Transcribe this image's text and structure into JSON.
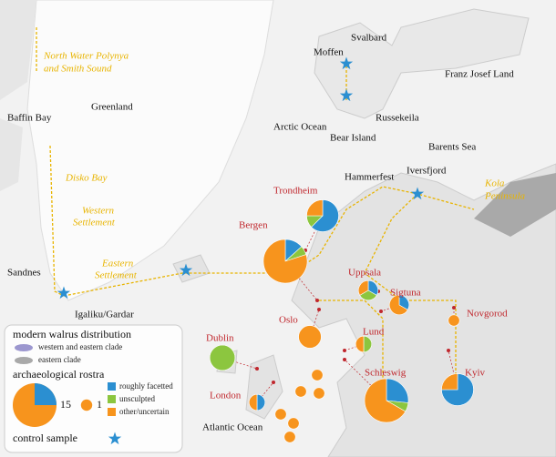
{
  "map": {
    "sea_labels": [
      "Baffin Bay",
      "Arctic Ocean",
      "Barents Sea",
      "Atlantic Ocean"
    ],
    "land_labels": [
      "Greenland",
      "Svalbard",
      "Franz Josef Land",
      "Bear Island",
      "Moffen",
      "Russekeila",
      "Hammerfest",
      "Iversfjord",
      "Sandnes",
      "Igaliku/Gardar"
    ],
    "hunting_grounds": [
      "North Water Polynya",
      "and Smith Sound",
      "Disko Bay",
      "Western",
      "Settlement",
      "Eastern",
      "Settlement",
      "Kola",
      "Peninsula"
    ],
    "sites": [
      {
        "label": "Trondheim",
        "values": [
          5,
          1,
          2
        ]
      },
      {
        "label": "Bergen",
        "values": [
          2,
          1,
          12
        ]
      },
      {
        "label": "Uppsala",
        "values": [
          1,
          1,
          1
        ]
      },
      {
        "label": "Sigtuna",
        "values": [
          1,
          0,
          2
        ]
      },
      {
        "label": "Oslo",
        "values": [
          0,
          0,
          4
        ]
      },
      {
        "label": "Novgorod",
        "values": [
          0,
          0,
          1
        ]
      },
      {
        "label": "Dublin",
        "values": [
          0,
          5,
          0
        ]
      },
      {
        "label": "Lund",
        "values": [
          0,
          1,
          1
        ]
      },
      {
        "label": "Schleswig",
        "values": [
          4,
          1,
          10
        ]
      },
      {
        "label": "Kyiv",
        "values": [
          6,
          0,
          2
        ]
      },
      {
        "label": "London",
        "values": [
          1,
          0,
          1
        ]
      },
      {
        "label": null,
        "values": [
          0,
          0,
          1
        ]
      },
      {
        "label": null,
        "values": [
          0,
          0,
          1
        ]
      },
      {
        "label": null,
        "values": [
          0,
          0,
          1
        ]
      },
      {
        "label": null,
        "values": [
          0,
          0,
          1
        ]
      },
      {
        "label": null,
        "values": [
          0,
          0,
          1
        ]
      },
      {
        "label": null,
        "values": [
          0,
          0,
          1
        ]
      }
    ]
  },
  "legend": {
    "distribution_title": "modern walrus distribution",
    "distribution": [
      {
        "label": "western and eastern clade",
        "color": "#9c97cf"
      },
      {
        "label": "eastern clade",
        "color": "#a9a9a9"
      }
    ],
    "rostra_title": "archaeological rostra",
    "size_examples": [
      {
        "value": 15,
        "label": "15"
      },
      {
        "value": 1,
        "label": "1"
      }
    ],
    "categories": [
      {
        "label": "roughly facetted",
        "color": "#2b8fd1"
      },
      {
        "label": "unsculpted",
        "color": "#8cc63f"
      },
      {
        "label": "other/uncertain",
        "color": "#f7941d"
      }
    ],
    "control_title": "control sample"
  }
}
